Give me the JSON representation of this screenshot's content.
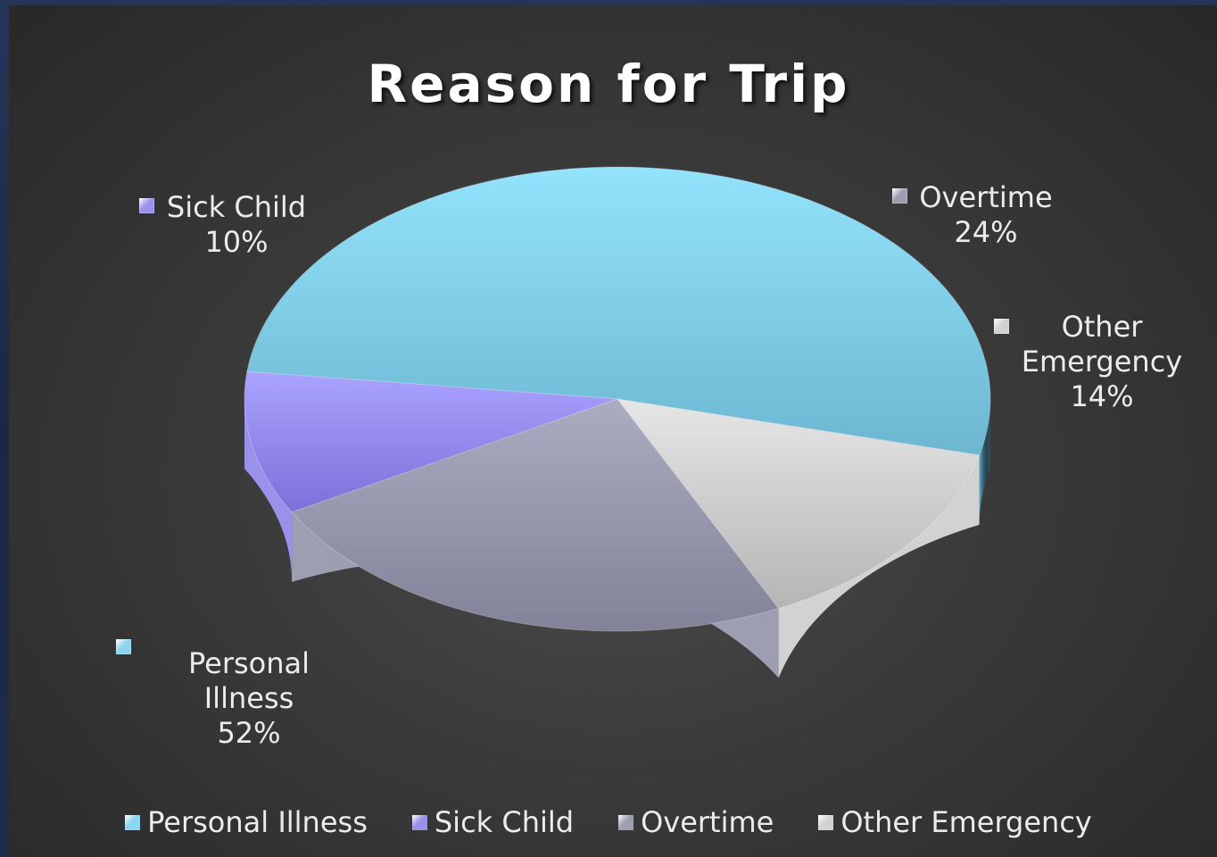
{
  "chart_data": {
    "type": "pie",
    "title": "Reason for Trip",
    "three_d": true,
    "legend_position": "bottom",
    "slices": [
      {
        "label": "Personal Illness",
        "value": 52,
        "value_label": "52%",
        "color": "#8fd4ef"
      },
      {
        "label": "Sick Child",
        "value": 10,
        "value_label": "10%",
        "color": "#9a92ea"
      },
      {
        "label": "Overtime",
        "value": 24,
        "value_label": "24%",
        "color": "#9e9eb2"
      },
      {
        "label": "Other Emergency",
        "value": 14,
        "value_label": "14%",
        "color": "#d2d2d2"
      }
    ]
  }
}
